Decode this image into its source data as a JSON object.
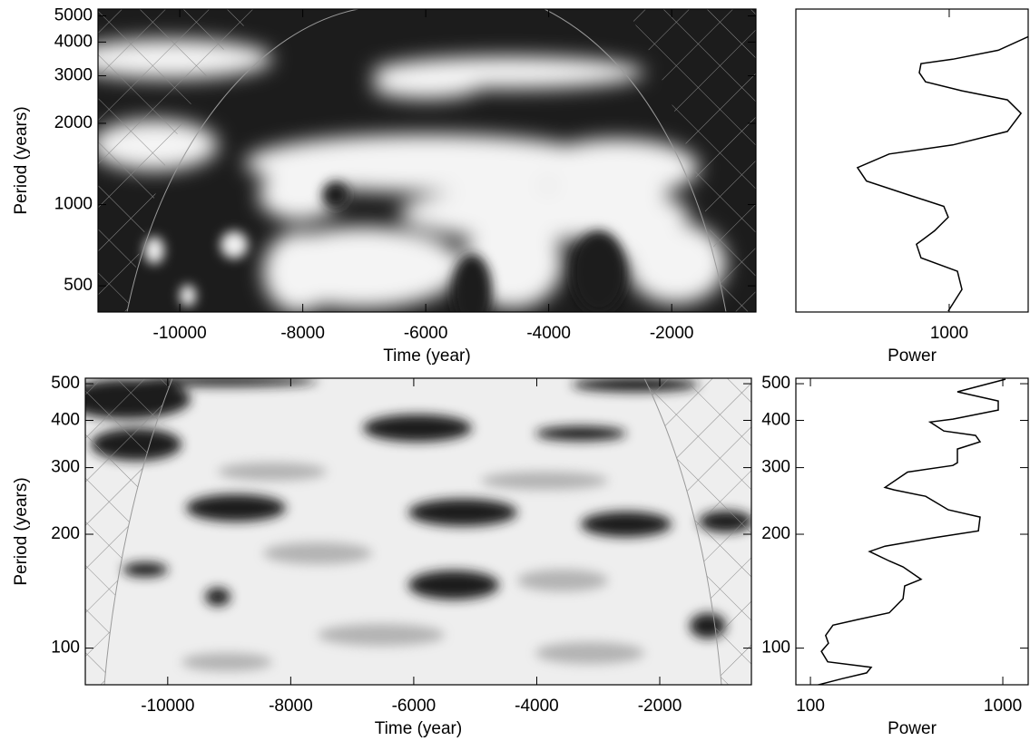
{
  "chart_data": [
    {
      "type": "heatmap",
      "xlabel": "Time (year)",
      "ylabel": "Period (years)",
      "xlim": [
        -11330,
        -630
      ],
      "xticks": [
        -10000,
        -8000,
        -6000,
        -4000,
        -2000
      ],
      "ylim": [
        400,
        5300
      ],
      "yticks": [
        500,
        1000,
        2000,
        3000,
        4000,
        5000
      ],
      "log_y": true
    },
    {
      "type": "line",
      "xlabel": "Power",
      "xlim": [
        160,
        2570
      ],
      "xticks": [
        1000
      ],
      "ylim": [
        400,
        5300
      ],
      "log_x": true,
      "log_y": true,
      "series": [
        {
          "color": "#000000",
          "x": [
            2573,
            1798,
            1044,
            714,
            699,
            754,
            1164,
            2004,
            2359,
            2004,
            1044,
            488,
            334,
            372,
            607,
            937,
            989,
            840,
            676,
            714,
            1103,
            1164,
            989
          ],
          "values": [
            4189,
            3731,
            3455,
            3326,
            3078,
            2850,
            2639,
            2443,
            2177,
            1866,
            1663,
            1539,
            1371,
            1222,
            1089,
            985,
            898,
            800,
            713,
            635,
            566,
            485,
            403
          ]
        }
      ]
    },
    {
      "type": "heatmap",
      "xlabel": "Time (year)",
      "ylabel": "Period (years)",
      "xlim": [
        -11340,
        -510
      ],
      "xticks": [
        -10000,
        -8000,
        -6000,
        -4000,
        -2000
      ],
      "ylim": [
        80,
        517
      ],
      "yticks": [
        100,
        200,
        300,
        400,
        500
      ],
      "log_y": true
    },
    {
      "type": "line",
      "xlabel": "Power",
      "xlim": [
        84,
        1355
      ],
      "xticks": [
        100,
        1000
      ],
      "ylim": [
        80,
        517
      ],
      "yticks": [
        100,
        200,
        300,
        400,
        500
      ],
      "log_x": true,
      "log_y": true,
      "series": [
        {
          "color": "#000000",
          "x": [
            1033,
            581,
            947,
            947,
            550,
            419,
            494,
            722,
            762,
            581,
            581,
            550,
            320,
            244,
            272,
            397,
            521,
            762,
            746,
            443,
            244,
            203,
            257,
            303,
            376,
            309,
            303,
            257,
            176,
            131,
            120,
            124,
            114,
            123,
            207,
            196,
            146,
            100
          ],
          "values": [
            514,
            476,
            450,
            426,
            403,
            396,
            375,
            365,
            351,
            336,
            309,
            304,
            292,
            266,
            262,
            252,
            232,
            222,
            204,
            196,
            186,
            180,
            170,
            164,
            152,
            146,
            135,
            124,
            119,
            115,
            108,
            103,
            98,
            92,
            89,
            86,
            83,
            79
          ]
        }
      ]
    }
  ]
}
